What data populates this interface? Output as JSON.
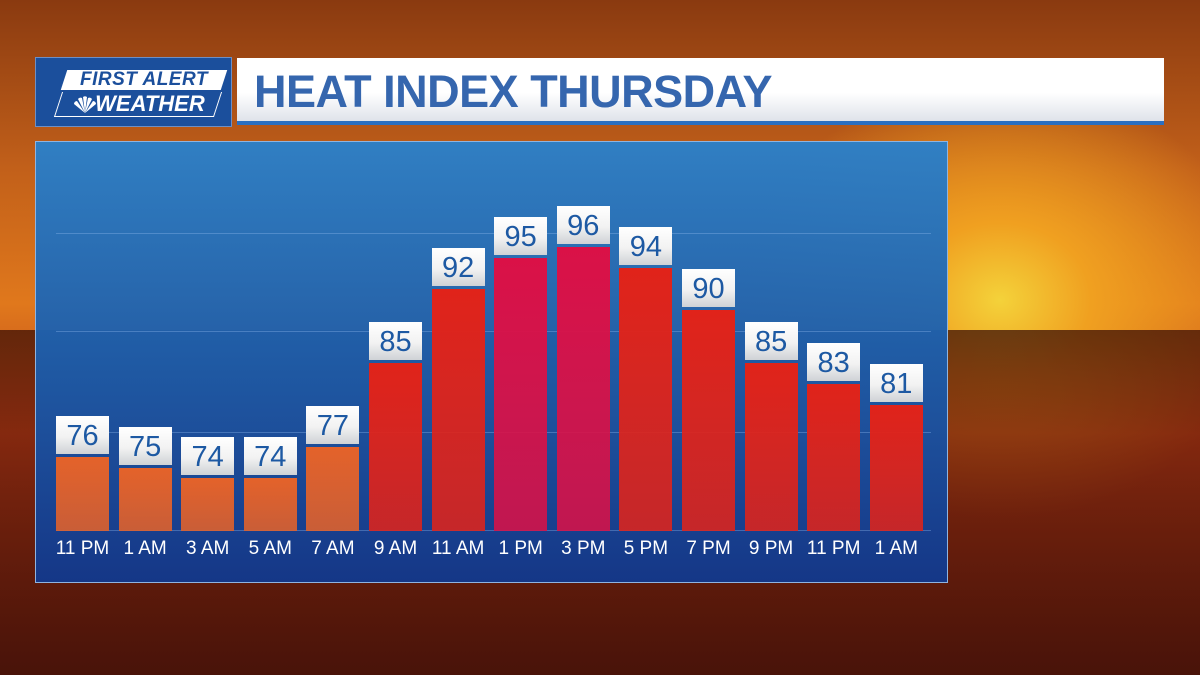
{
  "logo": {
    "line1": "FIRST ALERT",
    "line2": "WEATHER"
  },
  "title": "HEAT INDEX THURSDAY",
  "colors": {
    "warm": "#e4622a",
    "hot": "#e0231a",
    "hottest": "#da1147",
    "label_text": "#1d59a3",
    "panel": "#1f5fae"
  },
  "chart_data": {
    "type": "bar",
    "title": "HEAT INDEX THURSDAY",
    "categories": [
      "11 PM",
      "1 AM",
      "3 AM",
      "5 AM",
      "7 AM",
      "9 AM",
      "11 AM",
      "1 PM",
      "3 PM",
      "5 PM",
      "7 PM",
      "9 PM",
      "11 PM",
      "1 AM"
    ],
    "values": [
      76,
      75,
      74,
      74,
      77,
      85,
      92,
      95,
      96,
      94,
      90,
      85,
      83,
      81
    ],
    "ylim": [
      69,
      106
    ],
    "grid": true,
    "data_labels": true
  }
}
